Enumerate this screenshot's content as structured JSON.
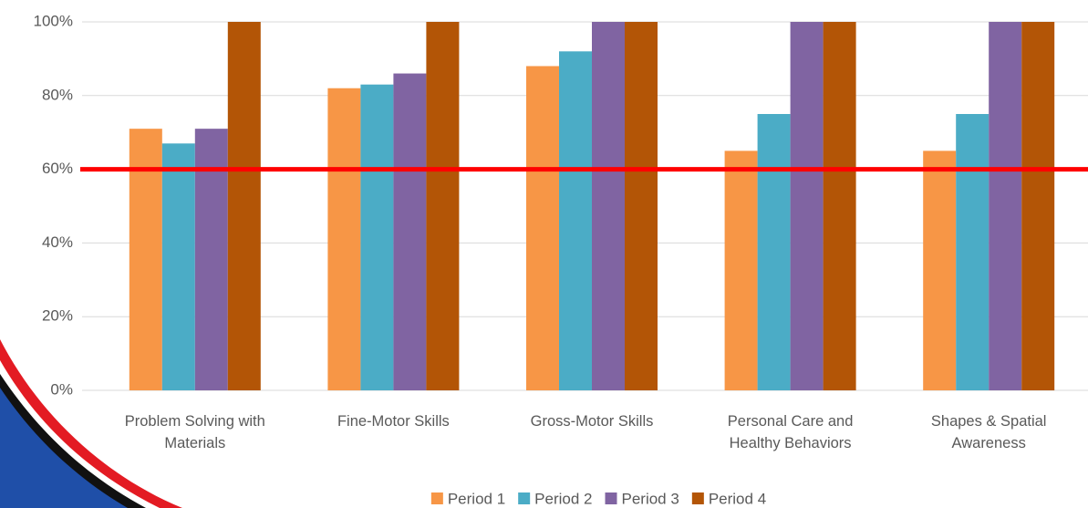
{
  "chart_data": {
    "type": "bar",
    "categories": [
      "Problem Solving with Materials",
      "Fine-Motor Skills",
      "Gross-Motor Skills",
      "Personal Care and Healthy Behaviors",
      "Shapes & Spatial Awareness"
    ],
    "series": [
      {
        "name": "Period 1",
        "color": "#f79646",
        "values": [
          71,
          82,
          88,
          65,
          65
        ]
      },
      {
        "name": "Period 2",
        "color": "#4bacc6",
        "values": [
          67,
          83,
          92,
          75,
          75
        ]
      },
      {
        "name": "Period 3",
        "color": "#8064a2",
        "values": [
          71,
          86,
          100,
          100,
          100
        ]
      },
      {
        "name": "Period 4",
        "color": "#b35506",
        "values": [
          100,
          100,
          100,
          100,
          100
        ]
      }
    ],
    "ylim": [
      0,
      100
    ],
    "yticks": [
      {
        "value": 0,
        "label": "0%"
      },
      {
        "value": 20,
        "label": "20%"
      },
      {
        "value": 40,
        "label": "40%"
      },
      {
        "value": 60,
        "label": "60%"
      },
      {
        "value": 80,
        "label": "80%"
      },
      {
        "value": 100,
        "label": "100%"
      }
    ],
    "grid": true,
    "reference_line": {
      "value": 60,
      "color": "#ff0000"
    },
    "legend": "bottom"
  }
}
